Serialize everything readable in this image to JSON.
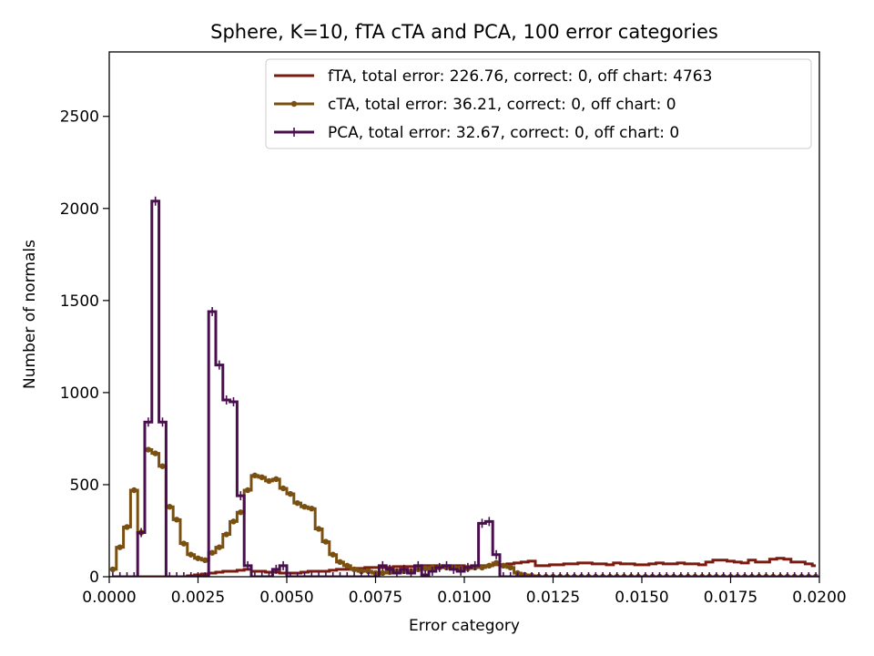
{
  "chart_data": {
    "type": "line",
    "drawstyle": "steps-mid",
    "title": "Sphere, K=10, fTA cTA and PCA, 100 error categories",
    "xlabel": "Error category",
    "ylabel": "Number of normals",
    "xlim": [
      0,
      0.02
    ],
    "ylim": [
      0,
      2850
    ],
    "xticks": [
      0,
      0.0025,
      0.005,
      0.0075,
      0.01,
      0.0125,
      0.015,
      0.0175,
      0.02
    ],
    "xtick_labels": [
      "0.0000",
      "0.0025",
      "0.0050",
      "0.0075",
      "0.0100",
      "0.0125",
      "0.0150",
      "0.0175",
      "0.0200"
    ],
    "yticks": [
      0,
      500,
      1000,
      1500,
      2000,
      2500
    ],
    "ytick_labels": [
      "0",
      "500",
      "1000",
      "1500",
      "2000",
      "2500"
    ],
    "grid": false,
    "legend_position": "upper right",
    "bin_width": 0.0002,
    "x_start": 0.0001,
    "series": [
      {
        "name": "fTA, total error: 226.76, correct: 0, off chart: 4763",
        "color": "#7b1a0e",
        "marker": "none",
        "values": [
          0,
          0,
          0,
          0,
          0,
          0,
          0,
          0,
          0,
          0,
          0,
          5,
          10,
          15,
          20,
          25,
          30,
          30,
          35,
          40,
          30,
          30,
          25,
          25,
          20,
          20,
          20,
          25,
          30,
          30,
          30,
          35,
          40,
          40,
          45,
          45,
          50,
          50,
          50,
          50,
          55,
          55,
          55,
          55,
          60,
          60,
          60,
          60,
          60,
          60,
          55,
          55,
          60,
          60,
          65,
          65,
          70,
          75,
          80,
          85,
          60,
          60,
          65,
          65,
          70,
          70,
          75,
          75,
          70,
          70,
          65,
          75,
          70,
          70,
          65,
          65,
          70,
          75,
          70,
          70,
          75,
          70,
          70,
          65,
          80,
          90,
          90,
          85,
          80,
          75,
          90,
          80,
          80,
          95,
          100,
          95,
          80,
          80,
          70,
          60
        ]
      },
      {
        "name": "cTA, total error: 36.21, correct: 0, off chart: 0",
        "color": "#7a5010",
        "marker": "dot",
        "values": [
          40,
          160,
          270,
          470,
          240,
          690,
          670,
          600,
          380,
          310,
          180,
          120,
          100,
          90,
          130,
          160,
          230,
          300,
          350,
          470,
          550,
          540,
          520,
          530,
          480,
          450,
          400,
          380,
          370,
          260,
          190,
          120,
          80,
          60,
          40,
          30,
          30,
          20,
          20,
          25,
          30,
          30,
          30,
          40,
          45,
          50,
          50,
          50,
          50,
          45,
          45,
          50,
          50,
          60,
          75,
          60,
          50,
          20,
          10,
          5,
          0,
          0,
          0,
          0,
          0,
          0,
          0,
          0,
          0,
          0,
          0,
          0,
          0,
          0,
          0,
          0,
          0,
          0,
          0,
          0,
          0,
          0,
          0,
          0,
          0,
          0,
          0,
          0,
          0,
          0,
          0,
          0,
          0,
          0,
          0,
          0,
          0,
          0,
          0,
          0
        ]
      },
      {
        "name": "PCA, total error: 32.67, correct: 0, off chart: 0",
        "color": "#4a0e4e",
        "marker": "plus",
        "values": [
          0,
          0,
          0,
          0,
          240,
          840,
          2040,
          840,
          0,
          0,
          0,
          0,
          0,
          0,
          1440,
          1150,
          960,
          950,
          440,
          60,
          0,
          0,
          0,
          40,
          60,
          0,
          0,
          0,
          0,
          0,
          0,
          0,
          0,
          0,
          0,
          0,
          0,
          0,
          60,
          40,
          20,
          40,
          20,
          60,
          10,
          30,
          50,
          60,
          40,
          30,
          50,
          60,
          290,
          300,
          120,
          0,
          0,
          0,
          0,
          0,
          0,
          0,
          0,
          0,
          0,
          0,
          0,
          0,
          0,
          0,
          0,
          0,
          0,
          0,
          0,
          0,
          0,
          0,
          0,
          0,
          0,
          0,
          0,
          0,
          0,
          0,
          0,
          0,
          0,
          0,
          0,
          0,
          0,
          0,
          0,
          0,
          0,
          0,
          0,
          0
        ]
      }
    ]
  }
}
